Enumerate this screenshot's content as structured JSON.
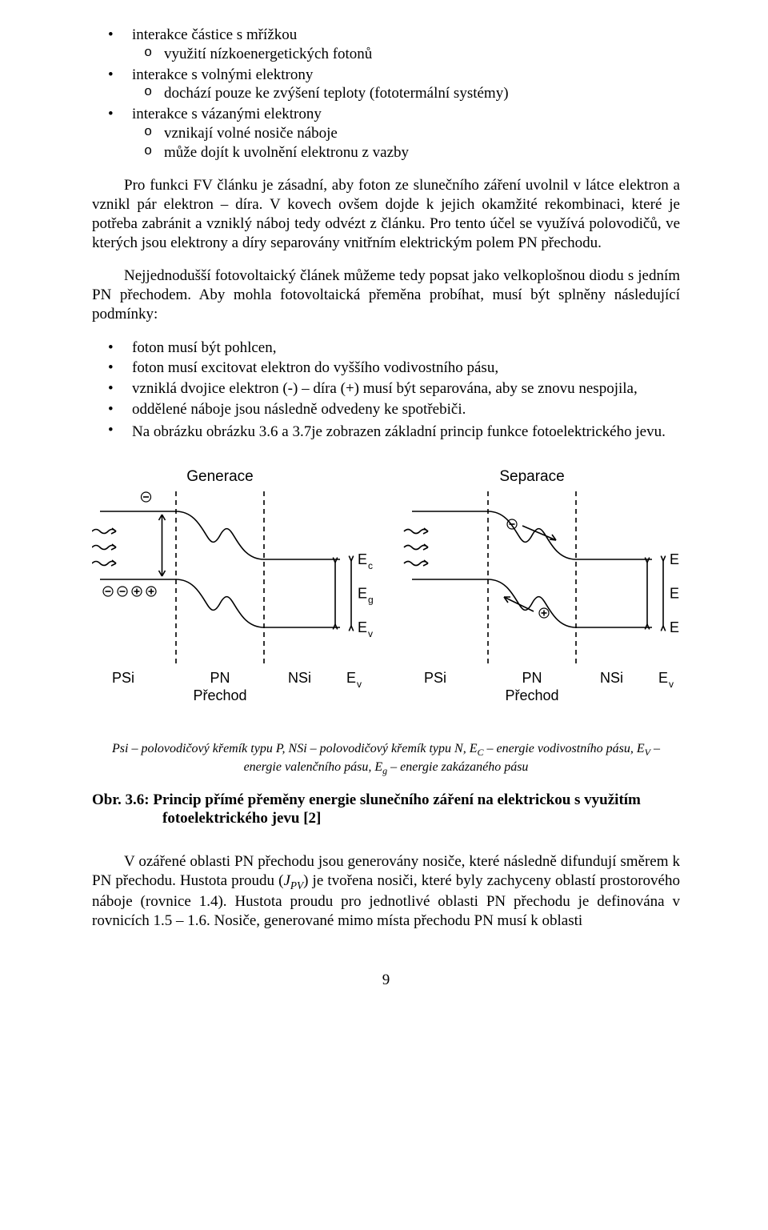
{
  "bullets_top": {
    "b1": "interakce částice s mřížkou",
    "b1s1": "využití nízkoenergetických fotonů",
    "b2": "interakce s volnými elektrony",
    "b2s1": "dochází pouze ke zvýšení teploty (fototermální systémy)",
    "b3": "interakce s vázanými elektrony",
    "b3s1": "vznikají volné nosiče náboje",
    "b3s2": "může dojít k uvolnění elektronu z vazby"
  },
  "para1": "Pro funkci FV článku je zásadní, aby foton ze slunečního záření uvolnil v látce elektron a vznikl pár elektron – díra. V kovech ovšem dojde k jejich okamžité rekombinaci, které je potřeba zabránit a vzniklý náboj tedy odvézt z článku. Pro tento účel se využívá polovodičů, ve kterých jsou elektrony a díry separovány vnitřním elektrickým polem PN přechodu.",
  "para2": "Nejjednodušší fotovoltaický článek můžeme tedy popsat jako velkoplošnou diodu s jedním PN přechodem. Aby mohla fotovoltaická přeměna probíhat, musí být splněny následující podmínky:",
  "bullets_mid": {
    "c1": "foton musí být pohlcen,",
    "c2": "foton musí excitovat elektron do vyššího vodivostního pásu,",
    "c3": "vzniklá dvojice elektron (-) – díra (+) musí být separována, aby se znovu nespojila,",
    "c4": "oddělené náboje jsou následně odvedeny ke spotřebiči."
  },
  "para3": "Na obrázku obrázku 3.6 a 3.7je zobrazen základní princip funkce fotoelektrického jevu.",
  "figure": {
    "left_title": "Generace",
    "right_title": "Separace",
    "labels": {
      "Ec": "E",
      "Ec_sub": "c",
      "Eg": "E",
      "Eg_sub": "g",
      "Ev": "E",
      "Ev_sub": "v",
      "PSi": "PSi",
      "PN": "PN",
      "Prechod": "Přechod",
      "NSi": "NSi"
    },
    "style": {
      "stroke": "#000000",
      "stroke_width": 1.6,
      "dash": "6,5",
      "font_family": "Arial, Helvetica, sans-serif",
      "title_fontsize": 19,
      "axis_fontsize": 18,
      "symbol_fontsize": 15
    }
  },
  "caption_small_a": "Psi – polovodičový křemík typu P, NSi – polovodičový křemík typu N, E",
  "caption_small_b": " – energie vodivostního pásu, E",
  "caption_small_c": " – energie valenčního pásu, E",
  "caption_small_d": " – energie zakázaného pásu",
  "caption_sub_C": "C",
  "caption_sub_V": "V",
  "caption_sub_g": "g",
  "fig_title_a": "Obr. 3.6: Princip přímé přeměny energie slunečního záření na elektrickou s využitím",
  "fig_title_b": "fotoelektrického jevu [2]",
  "para4_a": "V ozářené oblasti PN přechodu jsou generovány nosiče, které následně difundují směrem k PN přechodu. Hustota proudu (",
  "para4_jpv": "J",
  "para4_jpv_sub": "PV",
  "para4_b": ") je tvořena nosiči, které byly zachyceny oblastí prostorového náboje (rovnice 1.4). Hustota proudu pro jednotlivé oblasti PN přechodu je definována v rovnicích 1.5 – 1.6. Nosiče, generované mimo místa přechodu PN musí k oblasti",
  "page_number": "9"
}
